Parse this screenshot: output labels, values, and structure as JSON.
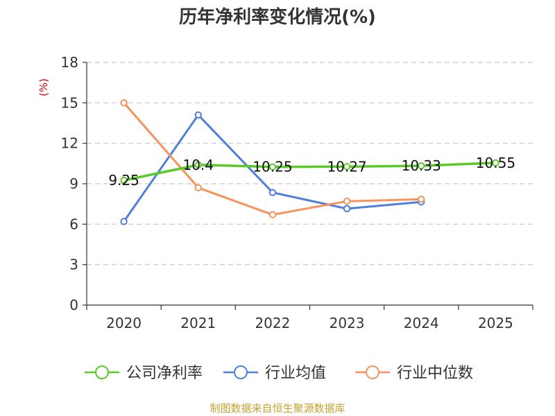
{
  "chart_data": {
    "type": "line",
    "title": "历年净利率变化情况(%)",
    "ylabel": "(%)",
    "ylim": [
      0,
      18
    ],
    "yticks": [
      0,
      3,
      6,
      9,
      12,
      15,
      18
    ],
    "categories": [
      "2020",
      "2021",
      "2022",
      "2023",
      "2024",
      "2025"
    ],
    "grid": true,
    "legend_position": "bottom",
    "series": [
      {
        "name": "公司净利率",
        "color": "#5bc929",
        "values": [
          9.25,
          10.4,
          10.25,
          10.27,
          10.33,
          10.55
        ],
        "labels": [
          "9.25",
          "10.4",
          "10.25",
          "10.27",
          "10.33",
          "10.55"
        ]
      },
      {
        "name": "行业均值",
        "color": "#4f7fdc",
        "values": [
          6.2,
          14.1,
          8.35,
          7.15,
          7.65,
          null
        ]
      },
      {
        "name": "行业中位数",
        "color": "#f7925a",
        "values": [
          15.0,
          8.7,
          6.7,
          7.7,
          7.85,
          null
        ]
      }
    ],
    "source": "制图数据来自恒生聚源数据库"
  }
}
